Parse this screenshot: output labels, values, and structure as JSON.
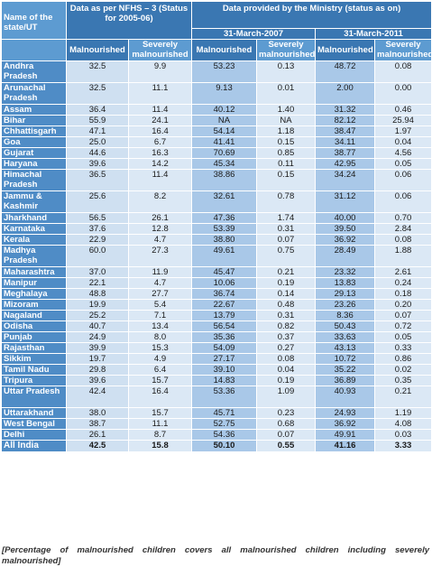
{
  "header": {
    "state_col": "Name of the state/UT",
    "nfhs_group": "Data as per NFHS – 3 (Status for 2005-06)",
    "ministry_group": "Data provided by the Ministry (status as on)",
    "date_2007": "31-March-2007",
    "date_2011": "31-March-2011",
    "malnourished": "Malnourished",
    "severely": "Severely malnourished"
  },
  "rows": [
    {
      "state": "Andhra Pradesh",
      "v": [
        "32.5",
        "9.9",
        "53.23",
        "0.13",
        "48.72",
        "0.08"
      ]
    },
    {
      "state": "Arunachal Pradesh",
      "v": [
        "32.5",
        "11.1",
        "9.13",
        "0.01",
        "2.00",
        "0.00"
      ]
    },
    {
      "state": "Assam",
      "v": [
        "36.4",
        "11.4",
        "40.12",
        "1.40",
        "31.32",
        "0.46"
      ]
    },
    {
      "state": "Bihar",
      "v": [
        "55.9",
        "24.1",
        "NA",
        "NA",
        "82.12",
        "25.94"
      ]
    },
    {
      "state": "Chhattisgarh",
      "v": [
        "47.1",
        "16.4",
        "54.14",
        "1.18",
        "38.47",
        "1.97"
      ]
    },
    {
      "state": "Goa",
      "v": [
        "25.0",
        "6.7",
        "41.41",
        "0.15",
        "34.11",
        "0.04"
      ]
    },
    {
      "state": "Gujarat",
      "v": [
        "44.6",
        "16.3",
        "70.69",
        "0.85",
        "38.77",
        "4.56"
      ]
    },
    {
      "state": "Haryana",
      "v": [
        "39.6",
        "14.2",
        "45.34",
        "0.11",
        "42.95",
        "0.05"
      ]
    },
    {
      "state": "Himachal Pradesh",
      "v": [
        "36.5",
        "11.4",
        "38.86",
        "0.15",
        "34.24",
        "0.06"
      ]
    },
    {
      "state": "Jammu & Kashmir",
      "v": [
        "25.6",
        "8.2",
        "32.61",
        "0.78",
        "31.12",
        "0.06"
      ]
    },
    {
      "state": "Jharkhand",
      "v": [
        "56.5",
        "26.1",
        "47.36",
        "1.74",
        "40.00",
        "0.70"
      ]
    },
    {
      "state": "Karnataka",
      "v": [
        "37.6",
        "12.8",
        "53.39",
        "0.31",
        "39.50",
        "2.84"
      ]
    },
    {
      "state": "Kerala",
      "v": [
        "22.9",
        "4.7",
        "38.80",
        "0.07",
        "36.92",
        "0.08"
      ]
    },
    {
      "state": "Madhya Pradesh",
      "v": [
        "60.0",
        "27.3",
        "49.61",
        "0.75",
        "28.49",
        "1.88"
      ]
    },
    {
      "state": "Maharashtra",
      "v": [
        "37.0",
        "11.9",
        "45.47",
        "0.21",
        "23.32",
        "2.61"
      ]
    },
    {
      "state": "Manipur",
      "v": [
        "22.1",
        "4.7",
        "10.06",
        "0.19",
        "13.83",
        "0.24"
      ]
    },
    {
      "state": "Meghalaya",
      "v": [
        "48.8",
        "27.7",
        "36.74",
        "0.14",
        "29.13",
        "0.18"
      ]
    },
    {
      "state": "Mizoram",
      "v": [
        "19.9",
        "5.4",
        "22.67",
        "0.48",
        "23.26",
        "0.20"
      ]
    },
    {
      "state": "Nagaland",
      "v": [
        "25.2",
        "7.1",
        "13.79",
        "0.31",
        "8.36",
        "0.07"
      ]
    },
    {
      "state": "Odisha",
      "v": [
        "40.7",
        "13.4",
        "56.54",
        "0.82",
        "50.43",
        "0.72"
      ]
    },
    {
      "state": "Punjab",
      "v": [
        "24.9",
        "8.0",
        "35.36",
        "0.37",
        "33.63",
        "0.05"
      ]
    },
    {
      "state": "Rajasthan",
      "v": [
        "39.9",
        "15.3",
        "54.09",
        "0.27",
        "43.13",
        "0.33"
      ]
    },
    {
      "state": "Sikkim",
      "v": [
        "19.7",
        "4.9",
        "27.17",
        "0.08",
        "10.72",
        "0.86"
      ]
    },
    {
      "state": "Tamil Nadu",
      "v": [
        "29.8",
        "6.4",
        "39.10",
        "0.04",
        "35.22",
        "0.02"
      ]
    },
    {
      "state": "Tripura",
      "v": [
        "39.6",
        "15.7",
        "14.83",
        "0.19",
        "36.89",
        "0.35"
      ]
    },
    {
      "state": "Uttar Pradesh",
      "v": [
        "42.4",
        "16.4",
        "53.36",
        "1.09",
        "40.93",
        "0.21"
      ]
    },
    {
      "state": "Uttarakhand",
      "v": [
        "38.0",
        "15.7",
        "45.71",
        "0.23",
        "24.93",
        "1.19"
      ]
    },
    {
      "state": "West Bengal",
      "v": [
        "38.7",
        "11.1",
        "52.75",
        "0.68",
        "36.92",
        "4.08"
      ]
    },
    {
      "state": "Delhi",
      "v": [
        "26.1",
        "8.7",
        "54.36",
        "0.07",
        "49.91",
        "0.03"
      ]
    }
  ],
  "total": {
    "state": "All India",
    "v": [
      "42.5",
      "15.8",
      "50.10",
      "0.55",
      "41.16",
      "3.33"
    ]
  },
  "note": "[Percentage of malnourished children covers all malnourished children including severely malnourished]",
  "colors": {
    "header_dark": "#3a77b2",
    "state_col": "#4f8cc6",
    "cell_dark": "#a9c8e8",
    "cell_light": "#dbe8f5"
  }
}
